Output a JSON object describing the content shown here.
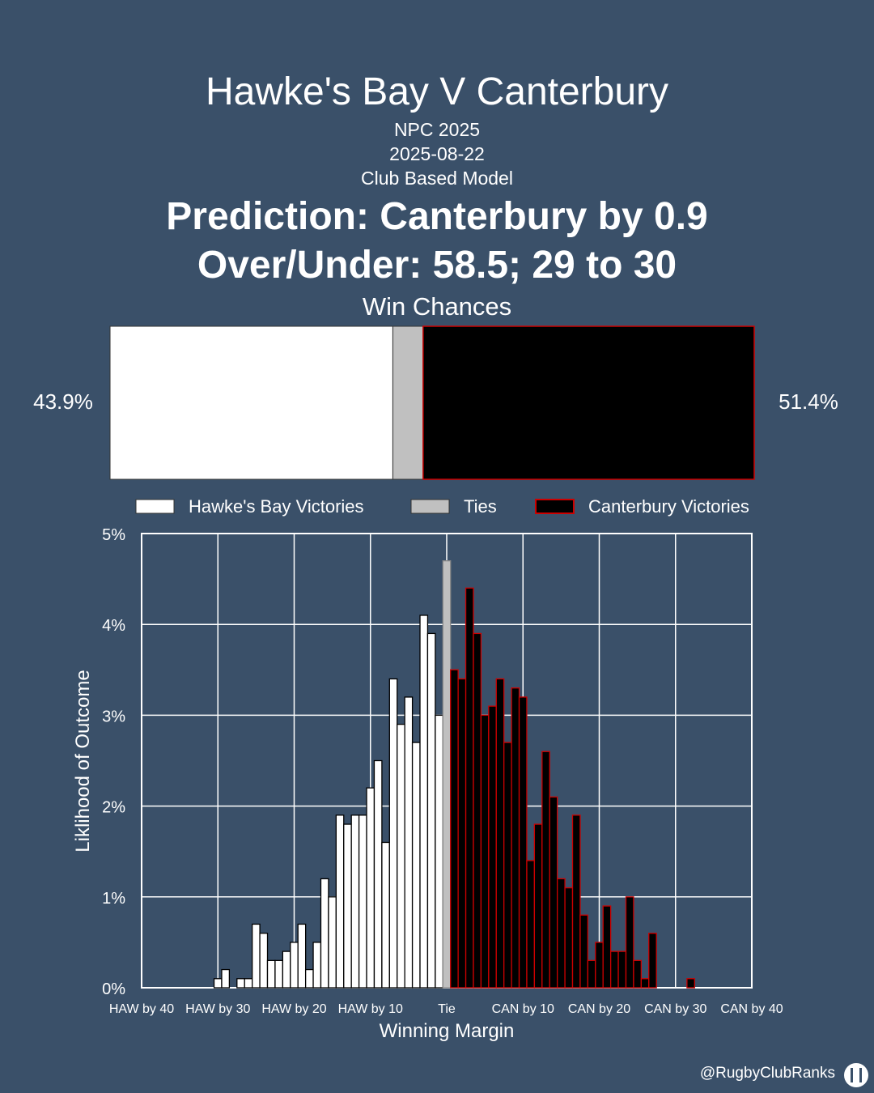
{
  "header": {
    "title": "Hawke's Bay V Canterbury",
    "competition": "NPC 2025",
    "date": "2025-08-22",
    "model": "Club Based Model",
    "prediction": "Prediction: Canterbury by 0.9",
    "over_under": "Over/Under: 58.5; 29 to 30",
    "win_chances_label": "Win Chances"
  },
  "win_chances": {
    "home_pct": 43.9,
    "tie_pct": 4.7,
    "away_pct": 51.4,
    "home_label": "43.9%",
    "away_label": "51.4%"
  },
  "colors": {
    "background": "#3a5069",
    "home": "#ffffff",
    "tie": "#c0c0c0",
    "away": "#000000",
    "away_edge": "#cc0000"
  },
  "legend": [
    {
      "label": "Hawke's Bay Victories",
      "color": "#ffffff"
    },
    {
      "label": "Ties",
      "color": "#c0c0c0"
    },
    {
      "label": "Canterbury Victories",
      "color": "#000000"
    }
  ],
  "chart_data": {
    "type": "bar",
    "xlabel": "Winning Margin",
    "ylabel": "Liklihood of Outcome",
    "xlim": [
      -40,
      40
    ],
    "ylim": [
      0,
      5
    ],
    "y_ticks": [
      "0%",
      "1%",
      "2%",
      "3%",
      "4%",
      "5%"
    ],
    "x_ticks": [
      {
        "value": -40,
        "label": "HAW by 40"
      },
      {
        "value": -30,
        "label": "HAW by 30"
      },
      {
        "value": -20,
        "label": "HAW by 20"
      },
      {
        "value": -10,
        "label": "HAW by 10"
      },
      {
        "value": 0,
        "label": "Tie"
      },
      {
        "value": 10,
        "label": "CAN by 10"
      },
      {
        "value": 20,
        "label": "CAN by 20"
      },
      {
        "value": 30,
        "label": "CAN by 30"
      },
      {
        "value": 40,
        "label": "CAN by 40"
      }
    ],
    "grid": true,
    "legend_position": "top",
    "series": [
      {
        "name": "Hawke's Bay Victories",
        "margins": [
          -30,
          -29,
          -27,
          -26,
          -25,
          -24,
          -23,
          -22,
          -21,
          -20,
          -19,
          -18,
          -17,
          -16,
          -15,
          -14,
          -13,
          -12,
          -11,
          -10,
          -9,
          -8,
          -7,
          -6,
          -5,
          -4,
          -3,
          -2,
          -1
        ],
        "values": [
          0.1,
          0.2,
          0.1,
          0.1,
          0.7,
          0.6,
          0.3,
          0.3,
          0.4,
          0.5,
          0.7,
          0.2,
          0.5,
          1.2,
          1.0,
          1.9,
          1.8,
          1.9,
          1.9,
          2.2,
          2.5,
          1.6,
          3.4,
          2.9,
          3.2,
          2.7,
          4.1,
          3.9,
          3.0
        ]
      },
      {
        "name": "Ties",
        "margins": [
          0
        ],
        "values": [
          4.7
        ]
      },
      {
        "name": "Canterbury Victories",
        "margins": [
          1,
          2,
          3,
          4,
          5,
          6,
          7,
          8,
          9,
          10,
          11,
          12,
          13,
          14,
          15,
          16,
          17,
          18,
          19,
          20,
          21,
          22,
          23,
          24,
          25,
          26,
          27,
          28,
          29,
          30,
          32
        ],
        "values": [
          3.5,
          3.4,
          4.4,
          3.9,
          3.0,
          3.1,
          3.4,
          2.7,
          3.3,
          3.2,
          1.4,
          1.8,
          2.6,
          2.1,
          1.2,
          1.1,
          1.9,
          0.8,
          0.3,
          0.5,
          0.9,
          0.4,
          0.4,
          1.0,
          0.3,
          0.1,
          0.6,
          0.0,
          0.0,
          0.0,
          0.1
        ]
      }
    ]
  },
  "footer": {
    "handle": "@RugbyClubRanks"
  }
}
